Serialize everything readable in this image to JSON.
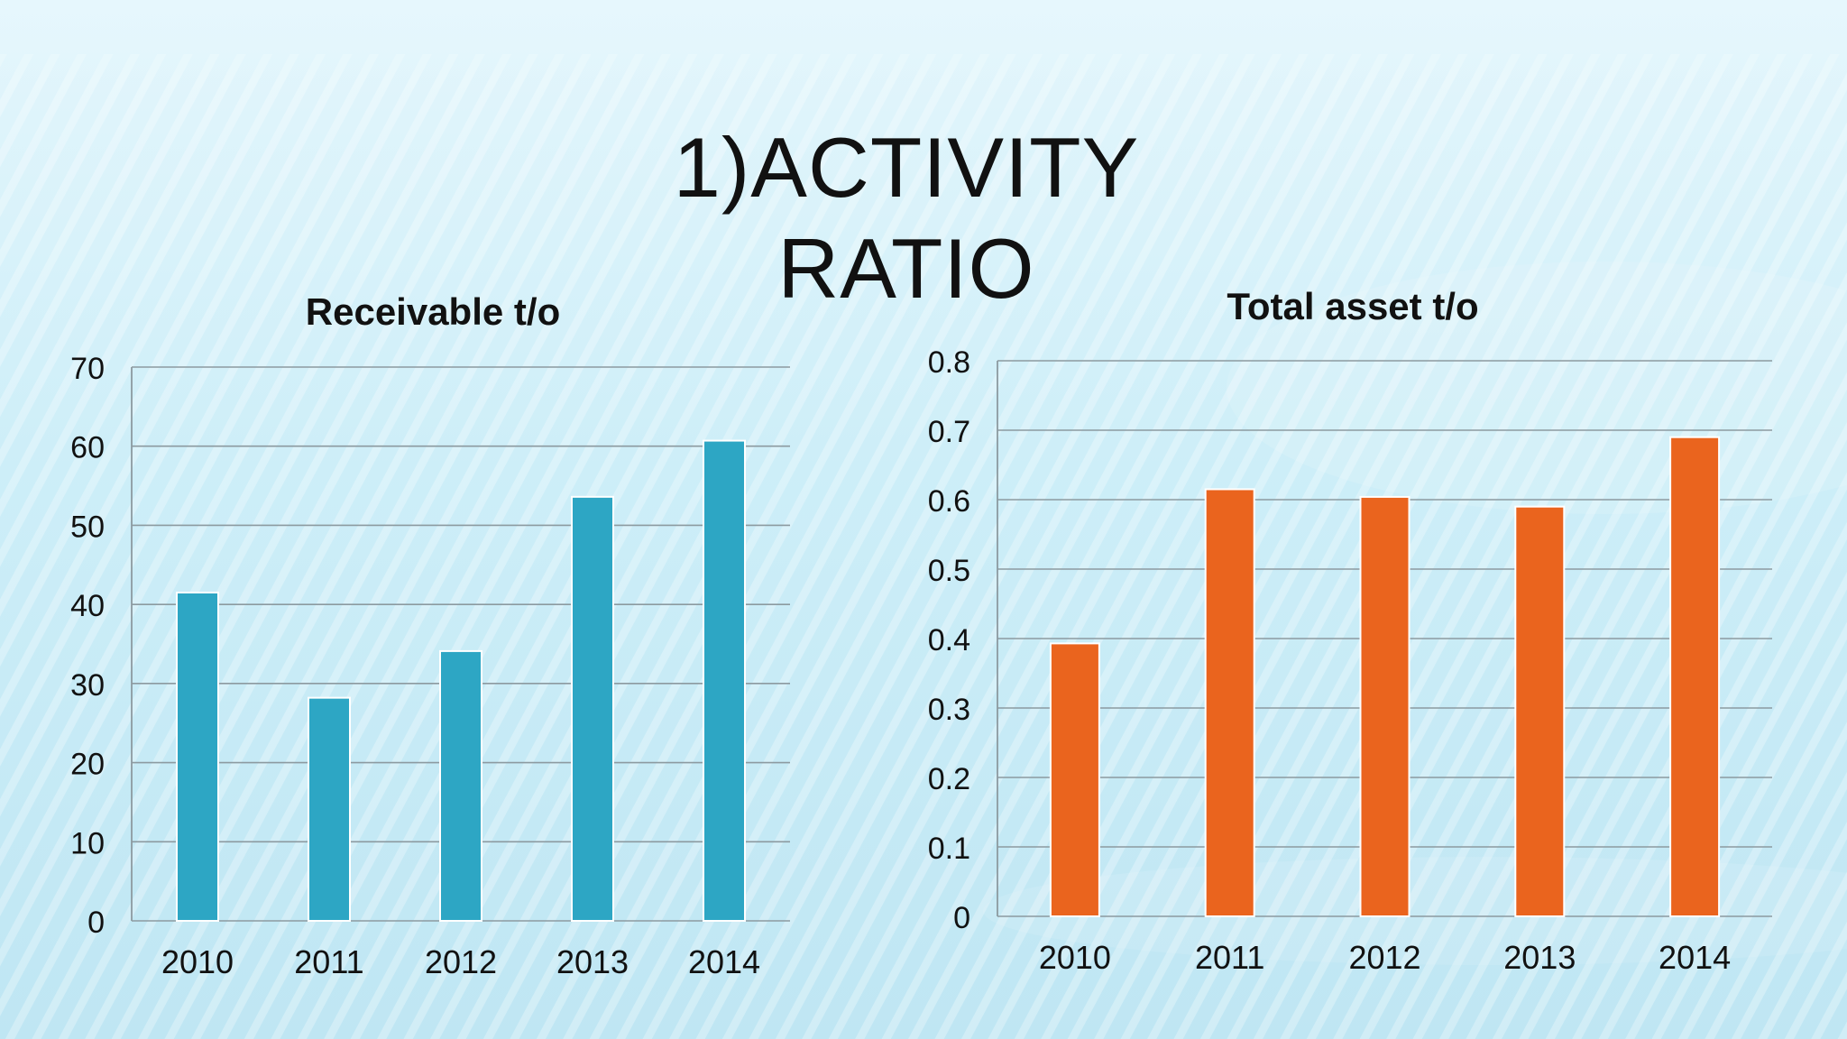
{
  "slide": {
    "title_line1": "1)ACTIVITY",
    "title_line2": "RATIO"
  },
  "chart_data": [
    {
      "type": "bar",
      "title": "Receivable t/o",
      "categories": [
        "2010",
        "2011",
        "2012",
        "2013",
        "2014"
      ],
      "values": [
        41.5,
        28.2,
        34.1,
        53.6,
        60.7
      ],
      "ylim": [
        0,
        70
      ],
      "yticks": [
        "0",
        "10",
        "20",
        "30",
        "40",
        "50",
        "60",
        "70"
      ],
      "grid": true,
      "legend": "none",
      "color": "#2da6c4"
    },
    {
      "type": "bar",
      "title": "Total asset t/o",
      "categories": [
        "2010",
        "2011",
        "2012",
        "2013",
        "2014"
      ],
      "values": [
        0.393,
        0.615,
        0.604,
        0.59,
        0.69
      ],
      "ylim": [
        0,
        0.8
      ],
      "yticks": [
        "0",
        "0.1",
        "0.2",
        "0.3",
        "0.4",
        "0.5",
        "0.6",
        "0.7",
        "0.8"
      ],
      "grid": true,
      "legend": "none",
      "color": "#ea641e"
    }
  ]
}
